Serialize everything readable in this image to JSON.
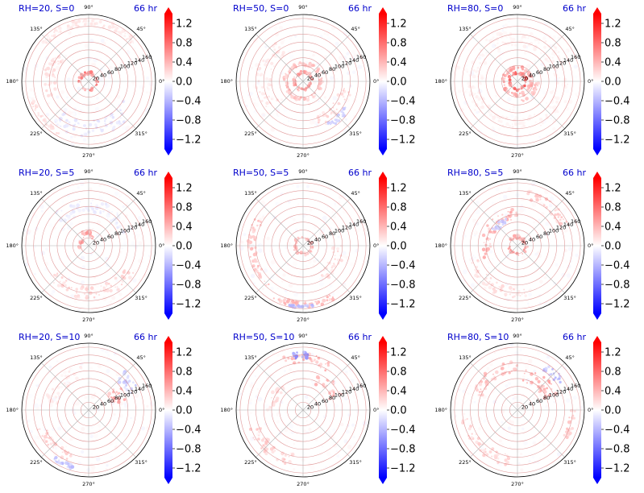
{
  "figure": {
    "colors": {
      "positive": "#ff0000",
      "negative": "#0000ff",
      "title_color": "#0000cc",
      "ring_color": "#d98080",
      "background": "#ffffff"
    }
  },
  "chart_data": [
    {
      "type": "heatmap",
      "projection": "polar",
      "title_left": "RH=20, S=0",
      "title_right": "66 hr",
      "radial_ticks": [
        "20",
        "40",
        "60",
        "80",
        "100",
        "120",
        "140",
        "160"
      ],
      "radial_range": [
        0,
        170
      ],
      "angle_ticks": [
        "90°",
        "45°",
        "0°",
        "315°",
        "270°",
        "225°",
        "180°",
        "135°"
      ],
      "colorbar": {
        "ticks": [
          "1.2",
          "0.8",
          "0.4",
          "0.0",
          "−0.4",
          "−0.8",
          "−1.2"
        ],
        "range": [
          -1.4,
          1.4
        ],
        "cmap": "bwr",
        "extend": "both"
      },
      "features": [
        {
          "r": 22,
          "spread": 8,
          "a0": 0,
          "a1": 360,
          "value": 0.7
        },
        {
          "r": 100,
          "spread": 30,
          "a0": 140,
          "a1": 200,
          "value": 0.2
        },
        {
          "r": 150,
          "spread": 15,
          "a0": 40,
          "a1": 140,
          "value": 0.15
        },
        {
          "r": 120,
          "spread": 40,
          "a0": 230,
          "a1": 330,
          "value": -0.15
        },
        {
          "r": 150,
          "spread": 10,
          "a0": 200,
          "a1": 240,
          "value": 0.2
        }
      ]
    },
    {
      "type": "heatmap",
      "projection": "polar",
      "title_left": "RH=50, S=0",
      "title_right": "66 hr",
      "radial_ticks": [
        "20",
        "40",
        "60",
        "80",
        "100",
        "120",
        "140",
        "160"
      ],
      "radial_range": [
        0,
        170
      ],
      "angle_ticks": [
        "90°",
        "45°",
        "0°",
        "315°",
        "270°",
        "225°",
        "180°",
        "135°"
      ],
      "colorbar": {
        "ticks": [
          "1.2",
          "0.8",
          "0.4",
          "0.0",
          "−0.4",
          "−0.8",
          "−1.2"
        ],
        "range": [
          -1.4,
          1.4
        ],
        "cmap": "bwr",
        "extend": "both"
      },
      "features": [
        {
          "r": 22,
          "spread": 8,
          "a0": 0,
          "a1": 360,
          "value": 0.6
        },
        {
          "r": 45,
          "spread": 10,
          "a0": 0,
          "a1": 360,
          "value": 0.35
        },
        {
          "r": 110,
          "spread": 30,
          "a0": 290,
          "a1": 350,
          "value": 0.25
        },
        {
          "r": 130,
          "spread": 15,
          "a0": 300,
          "a1": 330,
          "value": -0.3
        },
        {
          "r": 100,
          "spread": 40,
          "a0": 120,
          "a1": 220,
          "value": 0.15
        }
      ]
    },
    {
      "type": "heatmap",
      "projection": "polar",
      "title_left": "RH=80, S=0",
      "title_right": "66 hr",
      "radial_ticks": [
        "20",
        "40",
        "60",
        "80",
        "100",
        "120",
        "140",
        "160"
      ],
      "radial_range": [
        0,
        170
      ],
      "angle_ticks": [
        "90°",
        "45°",
        "0°",
        "315°",
        "270°",
        "225°",
        "180°",
        "135°"
      ],
      "colorbar": {
        "ticks": [
          "1.2",
          "0.8",
          "0.4",
          "0.0",
          "−0.4",
          "−0.8",
          "−1.2"
        ],
        "range": [
          -1.4,
          1.4
        ],
        "cmap": "bwr",
        "extend": "both"
      },
      "features": [
        {
          "r": 22,
          "spread": 6,
          "a0": 0,
          "a1": 360,
          "value": 0.9
        },
        {
          "r": 35,
          "spread": 8,
          "a0": 0,
          "a1": 360,
          "value": 0.5
        },
        {
          "r": 50,
          "spread": 10,
          "a0": 280,
          "a1": 360,
          "value": 0.35
        },
        {
          "r": 110,
          "spread": 40,
          "a0": 0,
          "a1": 360,
          "value": 0.08
        }
      ]
    },
    {
      "type": "heatmap",
      "projection": "polar",
      "title_left": "RH=20, S=5",
      "title_right": "66 hr",
      "radial_ticks": [
        "20",
        "40",
        "60",
        "80",
        "100",
        "120",
        "140",
        "160"
      ],
      "radial_range": [
        0,
        170
      ],
      "angle_ticks": [
        "90°",
        "45°",
        "0°",
        "315°",
        "270°",
        "225°",
        "180°",
        "135°"
      ],
      "colorbar": {
        "ticks": [
          "1.2",
          "0.8",
          "0.4",
          "0.0",
          "−0.4",
          "−0.8",
          "−1.2"
        ],
        "range": [
          -1.4,
          1.4
        ],
        "cmap": "bwr",
        "extend": "both"
      },
      "features": [
        {
          "r": 22,
          "spread": 8,
          "a0": 60,
          "a1": 200,
          "value": 0.6
        },
        {
          "r": 35,
          "spread": 10,
          "a0": 80,
          "a1": 120,
          "value": 0.5
        },
        {
          "r": 120,
          "spread": 30,
          "a0": 220,
          "a1": 330,
          "value": 0.25
        },
        {
          "r": 100,
          "spread": 40,
          "a0": 20,
          "a1": 140,
          "value": -0.12
        }
      ]
    },
    {
      "type": "heatmap",
      "projection": "polar",
      "title_left": "RH=50, S=5",
      "title_right": "66 hr",
      "radial_ticks": [
        "20",
        "40",
        "60",
        "80",
        "100",
        "120",
        "140",
        "160"
      ],
      "radial_range": [
        0,
        170
      ],
      "angle_ticks": [
        "90°",
        "45°",
        "0°",
        "315°",
        "270°",
        "225°",
        "180°",
        "135°"
      ],
      "colorbar": {
        "ticks": [
          "1.2",
          "0.8",
          "0.4",
          "0.0",
          "−0.4",
          "−0.8",
          "−1.2"
        ],
        "range": [
          -1.4,
          1.4
        ],
        "cmap": "bwr",
        "extend": "both"
      },
      "features": [
        {
          "r": 22,
          "spread": 8,
          "a0": 0,
          "a1": 360,
          "value": 0.4
        },
        {
          "r": 130,
          "spread": 20,
          "a0": 150,
          "a1": 230,
          "value": 0.35
        },
        {
          "r": 150,
          "spread": 15,
          "a0": 240,
          "a1": 300,
          "value": 0.4
        },
        {
          "r": 155,
          "spread": 8,
          "a0": 255,
          "a1": 280,
          "value": -0.4
        },
        {
          "r": 90,
          "spread": 30,
          "a0": 300,
          "a1": 360,
          "value": 0.2
        }
      ]
    },
    {
      "type": "heatmap",
      "projection": "polar",
      "title_left": "RH=80, S=5",
      "title_right": "66 hr",
      "radial_ticks": [
        "20",
        "40",
        "60",
        "80",
        "100",
        "120",
        "140",
        "160"
      ],
      "radial_range": [
        0,
        170
      ],
      "angle_ticks": [
        "90°",
        "45°",
        "0°",
        "315°",
        "270°",
        "225°",
        "180°",
        "135°"
      ],
      "colorbar": {
        "ticks": [
          "1.2",
          "0.8",
          "0.4",
          "0.0",
          "−0.4",
          "−0.8",
          "−1.2"
        ],
        "range": [
          -1.4,
          1.4
        ],
        "cmap": "bwr",
        "extend": "both"
      },
      "features": [
        {
          "r": 22,
          "spread": 8,
          "a0": 0,
          "a1": 360,
          "value": 0.5
        },
        {
          "r": 80,
          "spread": 25,
          "a0": 90,
          "a1": 200,
          "value": 0.45
        },
        {
          "r": 70,
          "spread": 15,
          "a0": 110,
          "a1": 150,
          "value": -0.35
        },
        {
          "r": 130,
          "spread": 25,
          "a0": 20,
          "a1": 80,
          "value": 0.3
        },
        {
          "r": 120,
          "spread": 30,
          "a0": 200,
          "a1": 280,
          "value": 0.2
        }
      ]
    },
    {
      "type": "heatmap",
      "projection": "polar",
      "title_left": "RH=20, S=10",
      "title_right": "66 hr",
      "radial_ticks": [
        "20",
        "40",
        "60",
        "80",
        "100",
        "120",
        "140",
        "160"
      ],
      "radial_range": [
        0,
        170
      ],
      "angle_ticks": [
        "90°",
        "45°",
        "0°",
        "315°",
        "270°",
        "225°",
        "180°",
        "135°"
      ],
      "colorbar": {
        "ticks": [
          "1.2",
          "0.8",
          "0.4",
          "0.0",
          "−0.4",
          "−0.8",
          "−1.2"
        ],
        "range": [
          -1.4,
          1.4
        ],
        "cmap": "bwr",
        "extend": "both"
      },
      "features": [
        {
          "r": 80,
          "spread": 40,
          "a0": 10,
          "a1": 40,
          "value": 0.5
        },
        {
          "r": 120,
          "spread": 30,
          "a0": 20,
          "a1": 50,
          "value": -0.3
        },
        {
          "r": 130,
          "spread": 25,
          "a0": 200,
          "a1": 250,
          "value": 0.3
        },
        {
          "r": 150,
          "spread": 10,
          "a0": 235,
          "a1": 255,
          "value": -0.4
        },
        {
          "r": 100,
          "spread": 40,
          "a0": 100,
          "a1": 170,
          "value": 0.12
        }
      ]
    },
    {
      "type": "heatmap",
      "projection": "polar",
      "title_left": "RH=50, S=10",
      "title_right": "66 hr",
      "radial_ticks": [
        "20",
        "40",
        "60",
        "80",
        "100",
        "120",
        "140",
        "160"
      ],
      "radial_range": [
        0,
        170
      ],
      "angle_ticks": [
        "90°",
        "45°",
        "0°",
        "315°",
        "270°",
        "225°",
        "180°",
        "135°"
      ],
      "colorbar": {
        "ticks": [
          "1.2",
          "0.8",
          "0.4",
          "0.0",
          "−0.4",
          "−0.8",
          "−1.2"
        ],
        "range": [
          -1.4,
          1.4
        ],
        "cmap": "bwr",
        "extend": "both"
      },
      "features": [
        {
          "r": 130,
          "spread": 30,
          "a0": 60,
          "a1": 110,
          "value": 0.45
        },
        {
          "r": 140,
          "spread": 15,
          "a0": 85,
          "a1": 100,
          "value": -0.6
        },
        {
          "r": 90,
          "spread": 35,
          "a0": 20,
          "a1": 70,
          "value": 0.4
        },
        {
          "r": 130,
          "spread": 30,
          "a0": 200,
          "a1": 260,
          "value": 0.3
        },
        {
          "r": 80,
          "spread": 25,
          "a0": 130,
          "a1": 180,
          "value": 0.2
        }
      ]
    },
    {
      "type": "heatmap",
      "projection": "polar",
      "title_left": "RH=80, S=10",
      "title_right": "66 hr",
      "radial_ticks": [
        "20",
        "40",
        "60",
        "80",
        "100",
        "120",
        "140",
        "160"
      ],
      "radial_range": [
        0,
        170
      ],
      "angle_ticks": [
        "90°",
        "45°",
        "0°",
        "315°",
        "270°",
        "225°",
        "180°",
        "135°"
      ],
      "colorbar": {
        "ticks": [
          "1.2",
          "0.8",
          "0.4",
          "0.0",
          "−0.4",
          "−0.8",
          "−1.2"
        ],
        "range": [
          -1.4,
          1.4
        ],
        "cmap": "bwr",
        "extend": "both"
      },
      "features": [
        {
          "r": 90,
          "spread": 40,
          "a0": 20,
          "a1": 80,
          "value": 0.5
        },
        {
          "r": 130,
          "spread": 20,
          "a0": 30,
          "a1": 60,
          "value": -0.4
        },
        {
          "r": 110,
          "spread": 30,
          "a0": 90,
          "a1": 160,
          "value": 0.35
        },
        {
          "r": 130,
          "spread": 30,
          "a0": 190,
          "a1": 260,
          "value": 0.25
        },
        {
          "r": 140,
          "spread": 15,
          "a0": 330,
          "a1": 360,
          "value": 0.3
        }
      ]
    }
  ]
}
